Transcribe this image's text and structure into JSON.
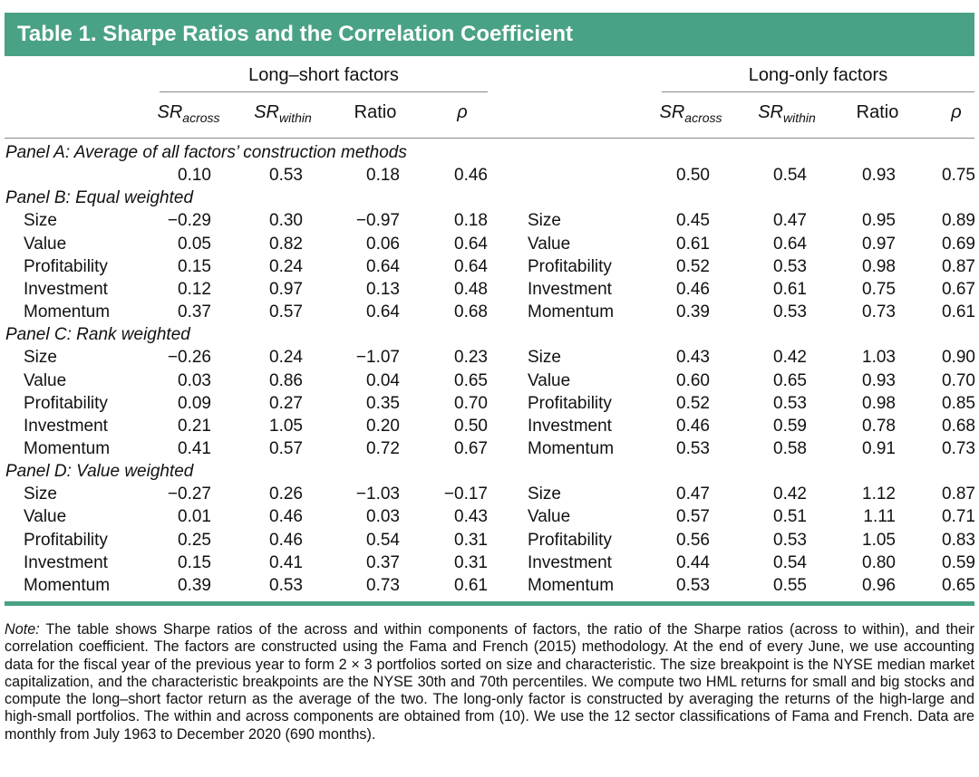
{
  "title": "Table 1.  Sharpe Ratios and the Correlation Coefficient",
  "groups": {
    "long_short": "Long–short factors",
    "long_only": "Long-only factors"
  },
  "columns": {
    "sr": "SR",
    "sub_across": "across",
    "sub_within": "within",
    "ratio": "Ratio",
    "rho": "ρ"
  },
  "panels": [
    {
      "title": "Panel A: Average of all factors’ construction methods",
      "rows": [
        {
          "label": "",
          "ls": [
            "0.10",
            "0.53",
            "0.18",
            "0.46"
          ],
          "lo": [
            "0.50",
            "0.54",
            "0.93",
            "0.75"
          ]
        }
      ]
    },
    {
      "title": "Panel B: Equal weighted",
      "rows": [
        {
          "label": "Size",
          "ls": [
            "−0.29",
            "0.30",
            "−0.97",
            "0.18"
          ],
          "lo": [
            "0.45",
            "0.47",
            "0.95",
            "0.89"
          ]
        },
        {
          "label": "Value",
          "ls": [
            "0.05",
            "0.82",
            "0.06",
            "0.64"
          ],
          "lo": [
            "0.61",
            "0.64",
            "0.97",
            "0.69"
          ]
        },
        {
          "label": "Profitability",
          "ls": [
            "0.15",
            "0.24",
            "0.64",
            "0.64"
          ],
          "lo": [
            "0.52",
            "0.53",
            "0.98",
            "0.87"
          ]
        },
        {
          "label": "Investment",
          "ls": [
            "0.12",
            "0.97",
            "0.13",
            "0.48"
          ],
          "lo": [
            "0.46",
            "0.61",
            "0.75",
            "0.67"
          ]
        },
        {
          "label": "Momentum",
          "ls": [
            "0.37",
            "0.57",
            "0.64",
            "0.68"
          ],
          "lo": [
            "0.39",
            "0.53",
            "0.73",
            "0.61"
          ]
        }
      ]
    },
    {
      "title": "Panel C: Rank weighted",
      "rows": [
        {
          "label": "Size",
          "ls": [
            "−0.26",
            "0.24",
            "−1.07",
            "0.23"
          ],
          "lo": [
            "0.43",
            "0.42",
            "1.03",
            "0.90"
          ]
        },
        {
          "label": "Value",
          "ls": [
            "0.03",
            "0.86",
            "0.04",
            "0.65"
          ],
          "lo": [
            "0.60",
            "0.65",
            "0.93",
            "0.70"
          ]
        },
        {
          "label": "Profitability",
          "ls": [
            "0.09",
            "0.27",
            "0.35",
            "0.70"
          ],
          "lo": [
            "0.52",
            "0.53",
            "0.98",
            "0.85"
          ]
        },
        {
          "label": "Investment",
          "ls": [
            "0.21",
            "1.05",
            "0.20",
            "0.50"
          ],
          "lo": [
            "0.46",
            "0.59",
            "0.78",
            "0.68"
          ]
        },
        {
          "label": "Momentum",
          "ls": [
            "0.41",
            "0.57",
            "0.72",
            "0.67"
          ],
          "lo": [
            "0.53",
            "0.58",
            "0.91",
            "0.73"
          ]
        }
      ]
    },
    {
      "title": "Panel D: Value weighted",
      "rows": [
        {
          "label": "Size",
          "ls": [
            "−0.27",
            "0.26",
            "−1.03",
            "−0.17"
          ],
          "lo": [
            "0.47",
            "0.42",
            "1.12",
            "0.87"
          ]
        },
        {
          "label": "Value",
          "ls": [
            "0.01",
            "0.46",
            "0.03",
            "0.43"
          ],
          "lo": [
            "0.57",
            "0.51",
            "1.11",
            "0.71"
          ]
        },
        {
          "label": "Profitability",
          "ls": [
            "0.25",
            "0.46",
            "0.54",
            "0.31"
          ],
          "lo": [
            "0.56",
            "0.53",
            "1.05",
            "0.83"
          ]
        },
        {
          "label": "Investment",
          "ls": [
            "0.15",
            "0.41",
            "0.37",
            "0.31"
          ],
          "lo": [
            "0.44",
            "0.54",
            "0.80",
            "0.59"
          ]
        },
        {
          "label": "Momentum",
          "ls": [
            "0.39",
            "0.53",
            "0.73",
            "0.61"
          ],
          "lo": [
            "0.53",
            "0.55",
            "0.96",
            "0.65"
          ]
        }
      ]
    }
  ],
  "note": {
    "label": "Note:",
    "text": "The table shows Sharpe ratios of the across and within components of factors, the ratio of the Sharpe ratios (across to within), and their correlation coefficient. The factors are constructed using the Fama and French (2015) methodology. At the end of every June, we use accounting data for the fiscal year of the previous year to form 2 × 3 portfolios sorted on size and characteristic. The size breakpoint is the NYSE median market capitalization, and the characteristic breakpoints are the NYSE 30th and 70th percentiles. We compute two HML returns for small and big stocks and compute the long–short factor return as the average of the two. The long-only factor is constructed by averaging the returns of the high-large and high-small portfolios. The within and across components are obtained from (10). We use the 12 sector classifications of Fama and French. Data are monthly from July 1963 to December 2020 (690 months)."
  }
}
